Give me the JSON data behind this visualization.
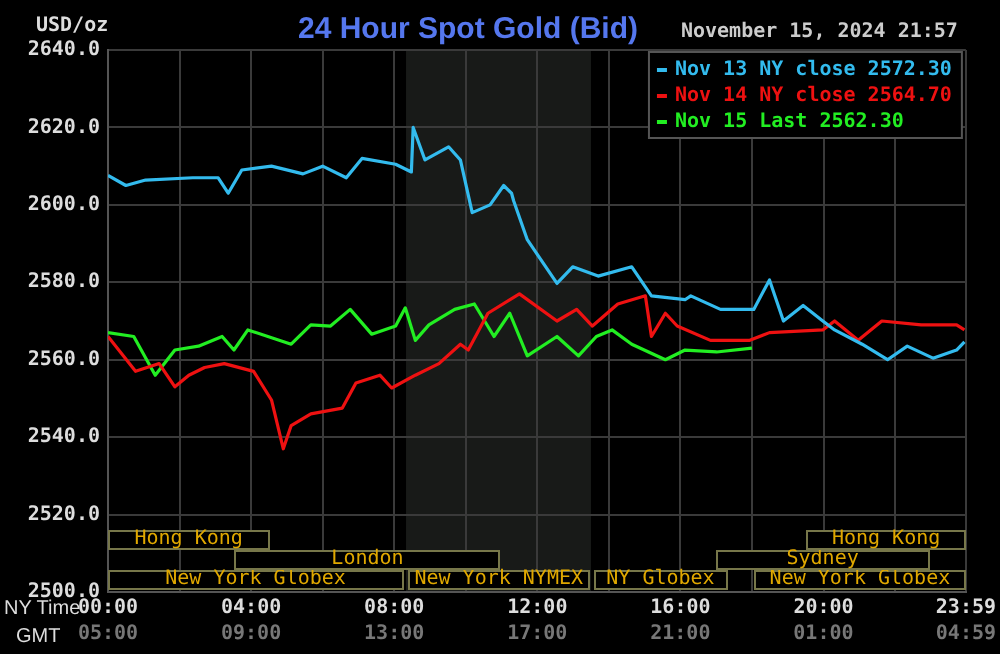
{
  "chart_data": {
    "type": "line",
    "title": "24 Hour Spot Gold (Bid)",
    "subtitle": "November 15, 2024 21:57",
    "ylabel": "USD/oz",
    "xlabel": "NY Time",
    "x2label": "GMT",
    "xlim": [
      0,
      23.98
    ],
    "xticks": [
      {
        "value": 0,
        "label": "00:00"
      },
      {
        "value": 2,
        "label": null
      },
      {
        "value": 4,
        "label": "04:00"
      },
      {
        "value": 6,
        "label": null
      },
      {
        "value": 8,
        "label": "08:00"
      },
      {
        "value": 10,
        "label": null
      },
      {
        "value": 12,
        "label": "12:00"
      },
      {
        "value": 14,
        "label": null
      },
      {
        "value": 16,
        "label": "16:00"
      },
      {
        "value": 18,
        "label": null
      },
      {
        "value": 20,
        "label": "20:00"
      },
      {
        "value": 22,
        "label": null
      },
      {
        "value": 23.98,
        "label": "23:59"
      }
    ],
    "x2lim": [
      "2024-11-15T05:00",
      "2024-11-16T04:59"
    ],
    "x2ticks": [
      {
        "value": "2024-11-15T05:00",
        "label": "05:00"
      },
      {
        "value": "2024-11-15T09:00",
        "label": "09:00"
      },
      {
        "value": "2024-11-15T13:00",
        "label": "13:00"
      },
      {
        "value": "2024-11-15T17:00",
        "label": "17:00"
      },
      {
        "value": "2024-11-15T21:00",
        "label": "21:00"
      },
      {
        "value": "2024-11-16T01:00",
        "label": "01:00"
      },
      {
        "value": "2024-11-16T04:59",
        "label": "04:59"
      }
    ],
    "ylim": [
      2500,
      2640
    ],
    "yticks": [
      {
        "value": 2500,
        "label": "2500.0"
      },
      {
        "value": 2520,
        "label": "2520.0"
      },
      {
        "value": 2540,
        "label": "2540.0"
      },
      {
        "value": 2560,
        "label": "2560.0"
      },
      {
        "value": 2580,
        "label": "2580.0"
      },
      {
        "value": 2600,
        "label": "2600.0"
      },
      {
        "value": 2620,
        "label": "2620.0"
      },
      {
        "value": 2640,
        "label": "2640.0"
      }
    ],
    "grid": true,
    "legend": "top right",
    "marker": "none",
    "line_style": "solid",
    "bands": [
      {
        "axis": "x",
        "from": 8.33,
        "to": 13.5,
        "color": "#181a18"
      }
    ],
    "annotations": [
      "New York Globex",
      "New York NYMEX",
      "NY Globex",
      "New York Globex",
      "London",
      "Sydney",
      "Hong Kong",
      "Hong Kong"
    ],
    "series": [
      {
        "name": "Nov 13 NY close 2572.30",
        "color": "#33bbee",
        "x": [
          0,
          0.5,
          1.05,
          2.37,
          3.08,
          3.36,
          3.74,
          4.57,
          5.45,
          6,
          6.66,
          7.1,
          8.04,
          8.48,
          8.53,
          8.86,
          9.52,
          9.85,
          10.18,
          10.68,
          11.06,
          11.28,
          11.34,
          11.72,
          12.55,
          12.99,
          13.7,
          14.64,
          15.19,
          16.13,
          16.29,
          17.12,
          18.05,
          18.49,
          18.88,
          19.43,
          19.98,
          20.31,
          21.08,
          21.79,
          22.34,
          23.06,
          23.72,
          23.94
        ],
        "values": [
          2607.6,
          2605,
          2606.4,
          2607,
          2607,
          2603,
          2609,
          2610,
          2608,
          2610,
          2607,
          2612,
          2610.5,
          2608.5,
          2620,
          2611.6,
          2615,
          2611.6,
          2598,
          2600,
          2605,
          2603,
          2601,
          2591,
          2579.7,
          2584,
          2581.6,
          2584,
          2576.5,
          2575.5,
          2576.5,
          2573,
          2573,
          2580.6,
          2570,
          2574,
          2570,
          2567.7,
          2564,
          2560,
          2563.5,
          2560.4,
          2562.5,
          2564.6
        ]
      },
      {
        "name": "Nov 14 NY close 2564.70",
        "color": "#ee1111",
        "x": [
          0,
          0.77,
          1.43,
          1.87,
          2.26,
          2.7,
          3.25,
          4.07,
          4.57,
          4.9,
          5.12,
          5.67,
          6.55,
          6.93,
          7.6,
          7.93,
          8.59,
          9.25,
          9.85,
          10.07,
          10.62,
          11.5,
          12.55,
          13.1,
          13.54,
          14.25,
          15.02,
          15.19,
          15.58,
          15.91,
          16.84,
          17.94,
          18.49,
          19.98,
          20.31,
          20.97,
          21.63,
          22.73,
          23.72,
          23.94
        ],
        "values": [
          2566,
          2557,
          2559,
          2553,
          2556,
          2558,
          2559,
          2557,
          2549.6,
          2537,
          2543,
          2546,
          2547.5,
          2554,
          2556,
          2552.7,
          2556,
          2559,
          2564,
          2562.5,
          2572,
          2577,
          2570,
          2573,
          2568.7,
          2574.4,
          2576.5,
          2566,
          2572,
          2568.7,
          2565,
          2565,
          2567,
          2567.7,
          2570,
          2565,
          2570,
          2569,
          2569,
          2567.7
        ]
      },
      {
        "name": "Nov 15 Last 2562.30",
        "color": "#22ee22",
        "x": [
          0,
          0.72,
          1.32,
          1.87,
          2.53,
          3.19,
          3.52,
          3.91,
          5.12,
          5.67,
          6.22,
          6.77,
          7.37,
          8.04,
          8.31,
          8.59,
          8.97,
          9.69,
          10.24,
          10.79,
          11.23,
          11.72,
          12.55,
          13.15,
          13.65,
          14.09,
          14.64,
          15.58,
          16.13,
          17.01,
          18
        ],
        "values": [
          2567,
          2566,
          2556,
          2562.5,
          2563.5,
          2566,
          2562.5,
          2567.7,
          2564,
          2569,
          2568.7,
          2573,
          2566.6,
          2568.7,
          2573.4,
          2565,
          2569,
          2573,
          2574.4,
          2566,
          2572,
          2561,
          2566,
          2561,
          2566,
          2567.7,
          2564,
          2560,
          2562.5,
          2562,
          2563
        ]
      }
    ]
  }
}
